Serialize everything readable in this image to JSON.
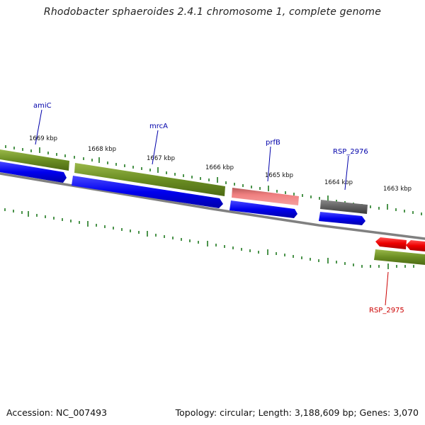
{
  "title": "Rhodobacter sphaeroides 2.4.1 chromosome 1, complete genome",
  "accession": "Accession: NC_007493",
  "summary": "Topology: circular; Length: 3,188,609 bp; Genes: 3,070",
  "colors": {
    "backbone": "#808080",
    "forward_gene": "#0000ee",
    "reverse_gene": "#ee0000",
    "cds": "#6b8e23",
    "partial": "#f08080",
    "other": "#606060",
    "ticks": "#1f7a1f",
    "label_blue": "#0000aa",
    "label_red": "#cc0000"
  },
  "kbp_labels": [
    "1669 kbp",
    "1668 kbp",
    "1667 kbp",
    "1666 kbp",
    "1665 kbp",
    "1664 kbp",
    "1663 kbp"
  ],
  "gene_labels": [
    {
      "text": "amiC",
      "color": "blue"
    },
    {
      "text": "mrcA",
      "color": "blue"
    },
    {
      "text": "prfB",
      "color": "blue"
    },
    {
      "text": "RSP_2976",
      "color": "blue"
    },
    {
      "text": "RSP_2975",
      "color": "red"
    }
  ]
}
